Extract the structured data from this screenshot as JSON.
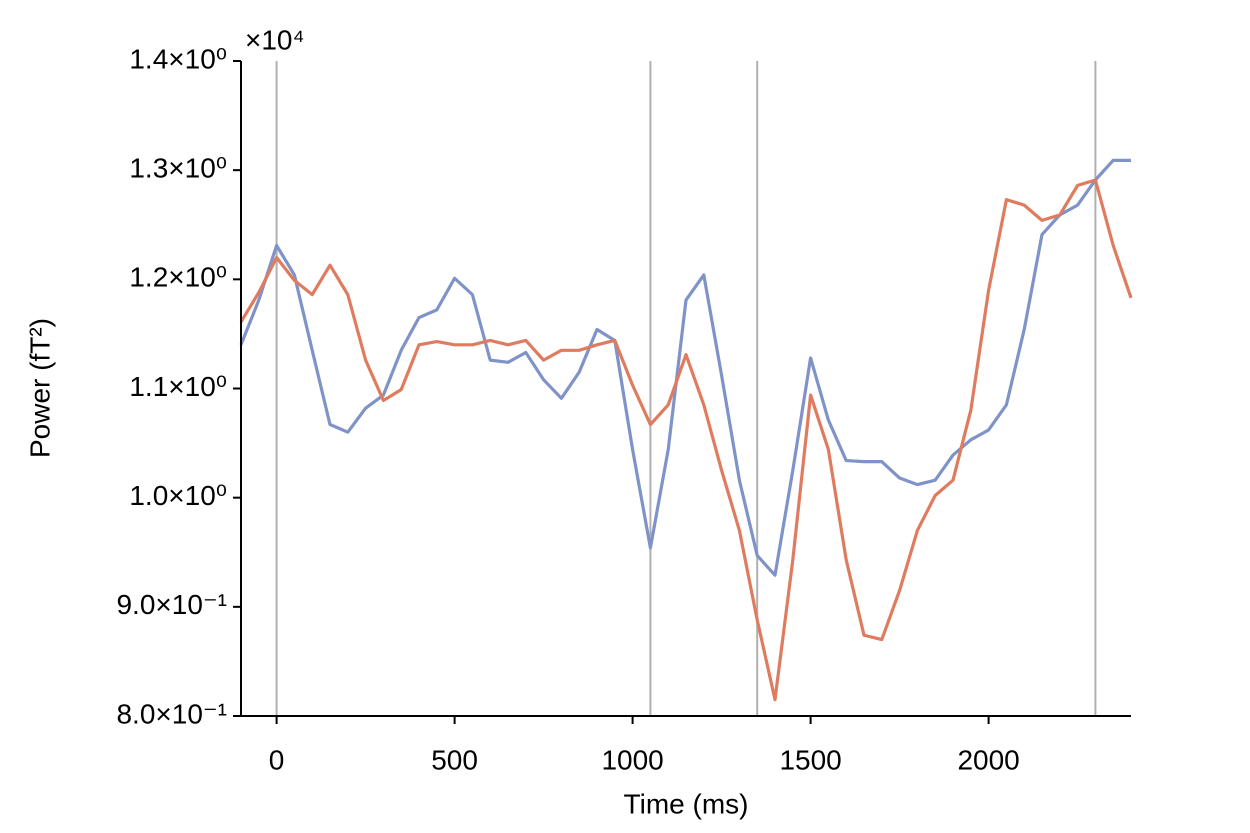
{
  "chart_data": {
    "type": "line",
    "x_label": "Time (ms)",
    "y_label": "Power (fT²)",
    "y_offset_label": "×10⁴",
    "x": [
      -100,
      -50,
      0,
      50,
      100,
      150,
      200,
      250,
      300,
      350,
      400,
      450,
      500,
      550,
      600,
      650,
      700,
      750,
      800,
      850,
      900,
      950,
      1000,
      1050,
      1100,
      1150,
      1200,
      1250,
      1300,
      1350,
      1400,
      1450,
      1500,
      1550,
      1600,
      1650,
      1700,
      1750,
      1800,
      1850,
      1900,
      1950,
      2000,
      2050,
      2100,
      2150,
      2200,
      2250,
      2300,
      2350,
      2400
    ],
    "series": [
      {
        "color": "#7f93c8",
        "values": [
          1.14,
          1.181,
          1.231,
          1.204,
          1.135,
          1.067,
          1.06,
          1.082,
          1.094,
          1.135,
          1.165,
          1.172,
          1.201,
          1.186,
          1.126,
          1.124,
          1.133,
          1.108,
          1.091,
          1.115,
          1.154,
          1.144,
          1.044,
          0.954,
          1.044,
          1.181,
          1.204,
          1.112,
          1.016,
          0.947,
          0.929,
          1.025,
          1.128,
          1.071,
          1.034,
          1.033,
          1.033,
          1.018,
          1.012,
          1.016,
          1.039,
          1.053,
          1.062,
          1.085,
          1.154,
          1.241,
          1.259,
          1.268,
          1.291,
          1.309,
          1.309
        ]
      },
      {
        "color": "#df7b5f",
        "values": [
          1.161,
          1.188,
          1.22,
          1.199,
          1.186,
          1.213,
          1.186,
          1.126,
          1.089,
          1.099,
          1.14,
          1.143,
          1.14,
          1.14,
          1.144,
          1.14,
          1.144,
          1.126,
          1.135,
          1.135,
          1.14,
          1.144,
          1.103,
          1.067,
          1.085,
          1.131,
          1.085,
          1.025,
          0.97,
          0.888,
          0.815,
          0.943,
          1.094,
          1.044,
          0.943,
          0.874,
          0.87,
          0.915,
          0.97,
          1.002,
          1.016,
          1.08,
          1.19,
          1.273,
          1.268,
          1.254,
          1.259,
          1.286,
          1.291,
          1.231,
          1.183
        ]
      }
    ],
    "vlines": [
      0,
      1050,
      1350,
      2300
    ],
    "vline_color": "#b0b0b0",
    "xlim": [
      -100,
      2400
    ],
    "xticks": [
      0,
      500,
      1000,
      1500,
      2000
    ],
    "ylim": [
      0.8,
      1.4
    ],
    "yticks": [
      {
        "value": 0.8,
        "label": "8.0×10⁻¹"
      },
      {
        "value": 0.9,
        "label": "9.0×10⁻¹"
      },
      {
        "value": 1.0,
        "label": "1.0×10⁰"
      },
      {
        "value": 1.1,
        "label": "1.1×10⁰"
      },
      {
        "value": 1.2,
        "label": "1.2×10⁰"
      },
      {
        "value": 1.3,
        "label": "1.3×10⁰"
      },
      {
        "value": 1.4,
        "label": "1.4×10⁰"
      }
    ],
    "grid": false
  }
}
